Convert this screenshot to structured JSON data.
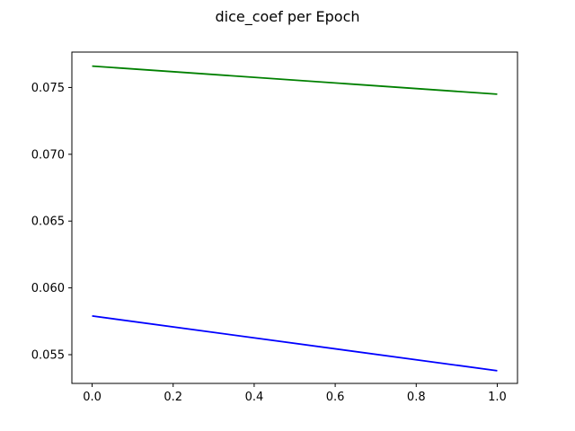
{
  "chart_data": {
    "type": "line",
    "title": "dice_coef per Epoch",
    "xlabel": "",
    "ylabel": "",
    "xlim": [
      -0.05,
      1.05
    ],
    "ylim": [
      0.05285,
      0.07765
    ],
    "xticks": [
      0.0,
      0.2,
      0.4,
      0.6,
      0.8,
      1.0
    ],
    "xtick_labels": [
      "0.0",
      "0.2",
      "0.4",
      "0.6",
      "0.8",
      "1.0"
    ],
    "yticks": [
      0.055,
      0.06,
      0.065,
      0.07,
      0.075
    ],
    "ytick_labels": [
      "0.055",
      "0.060",
      "0.065",
      "0.070",
      "0.075"
    ],
    "grid": false,
    "legend": "none",
    "series": [
      {
        "color": "#0000ff",
        "x": [
          0,
          1
        ],
        "y": [
          0.0579,
          0.0538
        ]
      },
      {
        "color": "#008000",
        "x": [
          0,
          1
        ],
        "y": [
          0.0766,
          0.0745
        ]
      }
    ]
  }
}
